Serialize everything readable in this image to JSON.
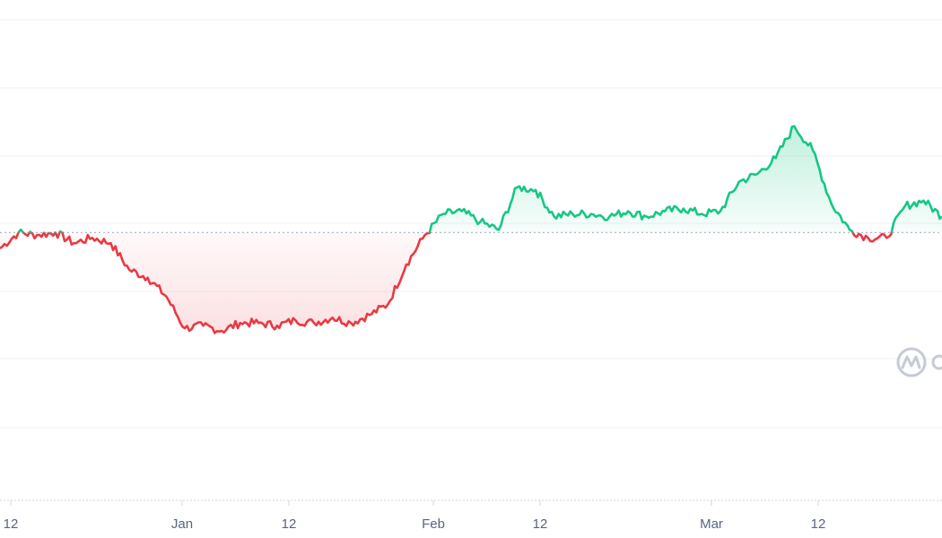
{
  "chart_data": {
    "type": "area",
    "title": "",
    "xlabel": "",
    "ylabel": "",
    "x_tick_labels": [
      "12",
      "Jan",
      "12",
      "Feb",
      "12",
      "Mar",
      "12"
    ],
    "grid": true,
    "legend": "none",
    "baseline": 100,
    "ylim": [
      0,
      180
    ],
    "colors": {
      "above": "#16c784",
      "below": "#ea3943",
      "grid": "#eff2f5",
      "tick_text": "#58667e",
      "baseline": "#a6b0c3"
    },
    "x": [
      "Dec 12",
      "Dec 14",
      "Dec 16",
      "Dec 18",
      "Dec 20",
      "Dec 22",
      "Dec 24",
      "Dec 26",
      "Dec 28",
      "Dec 30",
      "Jan 1",
      "Jan 3",
      "Jan 5",
      "Jan 7",
      "Jan 9",
      "Jan 11",
      "Jan 13",
      "Jan 15",
      "Jan 17",
      "Jan 19",
      "Jan 21",
      "Jan 23",
      "Jan 25",
      "Jan 27",
      "Jan 29",
      "Jan 31",
      "Feb 2",
      "Feb 4",
      "Feb 6",
      "Feb 8",
      "Feb 10",
      "Feb 12",
      "Feb 14",
      "Feb 16",
      "Feb 18",
      "Feb 20",
      "Feb 22",
      "Feb 24",
      "Feb 26",
      "Feb 28",
      "Mar 1",
      "Mar 3",
      "Mar 5",
      "Mar 7",
      "Mar 9",
      "Mar 11",
      "Mar 13",
      "Mar 15",
      "Mar 17",
      "Mar 19",
      "Mar 21",
      "Mar 23"
    ],
    "series": [
      {
        "values": [
          94,
          100,
          99,
          100,
          96,
          98,
          96,
          86,
          83,
          76,
          64,
          65,
          63,
          66,
          66,
          65,
          67,
          66,
          68,
          66,
          69,
          73,
          88,
          99,
          107,
          108,
          104,
          101,
          117,
          116,
          106,
          107,
          107,
          106,
          108,
          106,
          108,
          109,
          107,
          108,
          119,
          122,
          128,
          140,
          131,
          111,
          101,
          98,
          98,
          110,
          112,
          106
        ]
      }
    ]
  },
  "watermark": {
    "icon": "coinmarketcap-logo-icon"
  }
}
